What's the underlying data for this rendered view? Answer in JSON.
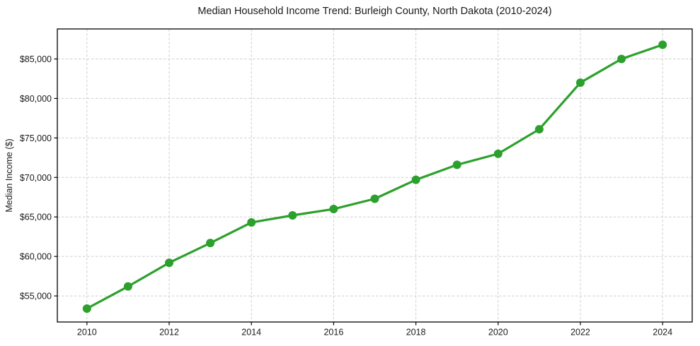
{
  "figure": {
    "title": "Median Household Income Trend: Burleigh County, North Dakota (2010-2024)"
  },
  "chart_data": {
    "type": "line",
    "title": "Median Household Income Trend: Burleigh County, North Dakota (2010-2024)",
    "xlabel": "",
    "ylabel": "Median Income ($)",
    "x": [
      2010,
      2011,
      2012,
      2013,
      2014,
      2015,
      2016,
      2017,
      2018,
      2019,
      2020,
      2021,
      2022,
      2023,
      2024
    ],
    "series": [
      {
        "name": "Median Household Income",
        "values": [
          53400,
          56200,
          59200,
          61700,
          64300,
          65200,
          66000,
          67300,
          69700,
          71600,
          73000,
          76100,
          82000,
          85000,
          86800
        ]
      }
    ],
    "xticks": [
      2010,
      2012,
      2014,
      2016,
      2018,
      2020,
      2022,
      2024
    ],
    "xtick_labels": [
      "2010",
      "2012",
      "2014",
      "2016",
      "2018",
      "2020",
      "2022",
      "2024"
    ],
    "yticks": [
      55000,
      60000,
      65000,
      70000,
      75000,
      80000,
      85000
    ],
    "ytick_labels": [
      "$55,000",
      "$60,000",
      "$65,000",
      "$70,000",
      "$75,000",
      "$80,000",
      "$85,000"
    ],
    "xlim": [
      2009.28,
      2024.72
    ],
    "ylim": [
      51700,
      88800
    ],
    "grid": true,
    "grid_style": "dashed",
    "legend": "none",
    "colors": {
      "line": "#2ca02c",
      "marker": "#2ca02c",
      "grid": "#cfcfcf",
      "spine": "#000000",
      "text": "#1a1a1a",
      "background": "#ffffff"
    },
    "line_width": 3.2,
    "marker_radius": 6
  }
}
